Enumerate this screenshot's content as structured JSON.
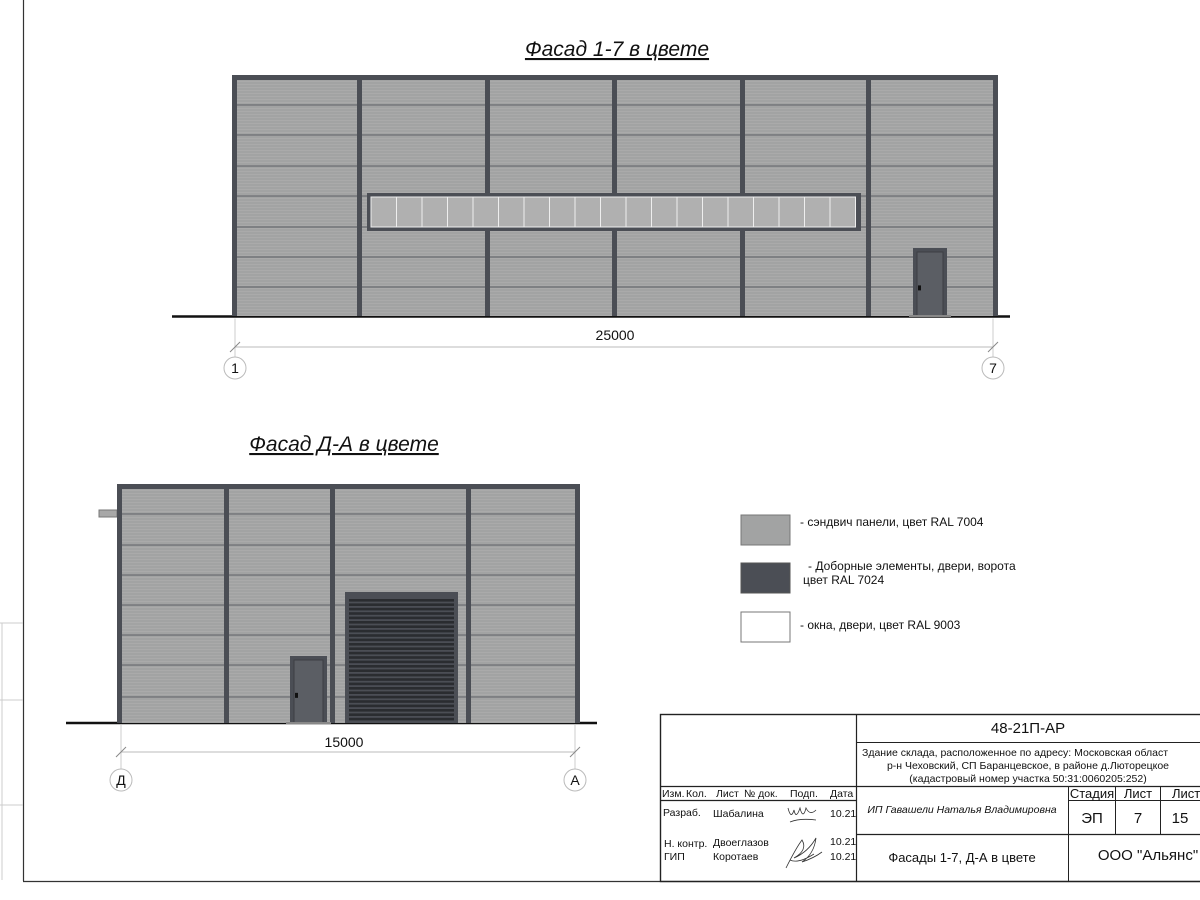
{
  "colors": {
    "panel": "#a2a3a3",
    "frame": "#4b4e55",
    "window": "#b0b0b0",
    "door": "#5b5e64"
  },
  "facade_1": {
    "title": "Фасад 1-7 в цвете",
    "dimension": "25000",
    "axis_start": "1",
    "axis_end": "7"
  },
  "facade_2": {
    "title": "Фасад Д-А в цвете",
    "dimension": "15000",
    "axis_start": "Д",
    "axis_end": "А"
  },
  "legend": [
    {
      "line1": "- сэндвич панели, цвет RAL 7004",
      "line2": "",
      "color": "#a2a3a3"
    },
    {
      "line1": "- Доборные элементы, двери, ворота",
      "line2": "цвет RAL 7024",
      "color": "#4b4e55"
    },
    {
      "line1": "- окна, двери, цвет RAL 9003",
      "line2": "",
      "color": "#ffffff"
    }
  ],
  "title_block": {
    "code": "48-21П-АР",
    "address": [
      "Здание склада, расположенное по адресу: Московская област",
      "р-н Чеховский, СП Баранцевское, в районе д.Люторецкое",
      "(кадастровый номер участка 50:31:0060205:252)"
    ],
    "headers": [
      "Изм.",
      "Кол.",
      "Лист",
      "№ док.",
      "Подп.",
      "Дата"
    ],
    "people": [
      {
        "role": "Разраб.",
        "name": "Шабалина",
        "date": "10.21"
      },
      {
        "role": "Н. контр.",
        "name": "Двоеглазов",
        "date": "10.21"
      },
      {
        "role": "ГИП",
        "name": "Коротаев",
        "date": "10.21"
      }
    ],
    "designer": "ИП Гавашели Наталья Владимировна",
    "stage_label": "Стадия",
    "sheet_label": "Лист",
    "sheets_label": "Листо",
    "stage": "ЭП",
    "sheet": "7",
    "sheets": "15",
    "sheet_title": "Фасады 1-7, Д-А в цвете",
    "company": "ООО \"Альянс\""
  }
}
